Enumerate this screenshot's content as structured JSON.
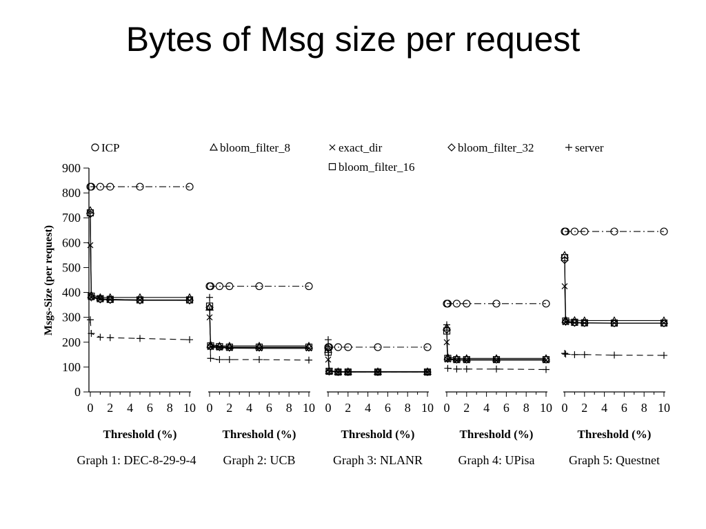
{
  "slide": {
    "title": "Bytes of Msg size per request"
  },
  "chart_data": {
    "type": "line",
    "ylabel": "Msgs-Size (per request)",
    "xlabel": "Threshold (%)",
    "ylim": [
      0,
      900
    ],
    "yticks": [
      0,
      100,
      200,
      300,
      400,
      500,
      600,
      700,
      800,
      900
    ],
    "xlim": [
      0,
      10
    ],
    "xticks": [
      0,
      2,
      4,
      6,
      8,
      10
    ],
    "legend": [
      {
        "name": "ICP",
        "marker": "circle",
        "dash": "dashdot"
      },
      {
        "name": "bloom_filter_8",
        "marker": "triangle",
        "dash": "solid"
      },
      {
        "name": "exact_dir",
        "marker": "x",
        "dash": "solid"
      },
      {
        "name": "bloom_filter_16",
        "marker": "square",
        "dash": "solid"
      },
      {
        "name": "bloom_filter_32",
        "marker": "diamond",
        "dash": "solid"
      },
      {
        "name": "server",
        "marker": "plus",
        "dash": "dashed"
      }
    ],
    "x": [
      0,
      0.1,
      1,
      2,
      5,
      10
    ],
    "panels": [
      {
        "caption": "Graph 1: DEC-8-29-9-4",
        "series": [
          {
            "name": "ICP",
            "values": [
              825,
              825,
              825,
              825,
              825,
              825
            ]
          },
          {
            "name": "bloom_filter_8",
            "values": [
              730,
              390,
              380,
              380,
              380,
              380
            ]
          },
          {
            "name": "exact_dir",
            "values": [
              590,
              380,
              375,
              372,
              370,
              368
            ]
          },
          {
            "name": "bloom_filter_16",
            "values": [
              720,
              385,
              375,
              372,
              370,
              370
            ]
          },
          {
            "name": "bloom_filter_32",
            "values": [
              715,
              380,
              372,
              370,
              368,
              368
            ]
          },
          {
            "name": "server",
            "values": [
              290,
              235,
              220,
              218,
              215,
              210
            ]
          }
        ]
      },
      {
        "caption": "Graph 2: UCB",
        "series": [
          {
            "name": "ICP",
            "values": [
              425,
              425,
              425,
              425,
              425,
              425
            ]
          },
          {
            "name": "bloom_filter_8",
            "values": [
              340,
              190,
              185,
              185,
              185,
              185
            ]
          },
          {
            "name": "exact_dir",
            "values": [
              300,
              180,
              178,
              176,
              175,
              175
            ]
          },
          {
            "name": "bloom_filter_16",
            "values": [
              345,
              185,
              182,
              180,
              180,
              180
            ]
          },
          {
            "name": "bloom_filter_32",
            "values": [
              340,
              182,
              180,
              178,
              178,
              178
            ]
          },
          {
            "name": "server",
            "values": [
              380,
              135,
              130,
              130,
              130,
              128
            ]
          }
        ]
      },
      {
        "caption": "Graph 3: NLANR",
        "series": [
          {
            "name": "ICP",
            "values": [
              180,
              180,
              180,
              180,
              180,
              180
            ]
          },
          {
            "name": "bloom_filter_8",
            "values": [
              170,
              85,
              82,
              82,
              82,
              82
            ]
          },
          {
            "name": "exact_dir",
            "values": [
              130,
              82,
              80,
              80,
              80,
              80
            ]
          },
          {
            "name": "bloom_filter_16",
            "values": [
              160,
              83,
              80,
              80,
              80,
              80
            ]
          },
          {
            "name": "bloom_filter_32",
            "values": [
              175,
              82,
              80,
              80,
              80,
              80
            ]
          },
          {
            "name": "server",
            "values": [
              210,
              85,
              80,
              80,
              80,
              80
            ]
          }
        ]
      },
      {
        "caption": "Graph 4: UPisa",
        "series": [
          {
            "name": "ICP",
            "values": [
              355,
              355,
              355,
              355,
              355,
              355
            ]
          },
          {
            "name": "bloom_filter_8",
            "values": [
              260,
              140,
              135,
              135,
              135,
              135
            ]
          },
          {
            "name": "exact_dir",
            "values": [
              200,
              130,
              128,
              128,
              128,
              128
            ]
          },
          {
            "name": "bloom_filter_16",
            "values": [
              245,
              135,
              130,
              130,
              130,
              130
            ]
          },
          {
            "name": "bloom_filter_32",
            "values": [
              250,
              133,
              130,
              130,
              130,
              130
            ]
          },
          {
            "name": "server",
            "values": [
              270,
              95,
              92,
              92,
              92,
              90
            ]
          }
        ]
      },
      {
        "caption": "Graph 5: Questnet",
        "series": [
          {
            "name": "ICP",
            "values": [
              645,
              645,
              645,
              645,
              645,
              645
            ]
          },
          {
            "name": "bloom_filter_8",
            "values": [
              550,
              290,
              288,
              287,
              287,
              287
            ]
          },
          {
            "name": "exact_dir",
            "values": [
              425,
              280,
              278,
              277,
              277,
              277
            ]
          },
          {
            "name": "bloom_filter_16",
            "values": [
              540,
              285,
              280,
              278,
              277,
              277
            ]
          },
          {
            "name": "bloom_filter_32",
            "values": [
              530,
              282,
              278,
              277,
              276,
              276
            ]
          },
          {
            "name": "server",
            "values": [
              155,
              152,
              150,
              150,
              148,
              147
            ]
          }
        ]
      }
    ]
  }
}
